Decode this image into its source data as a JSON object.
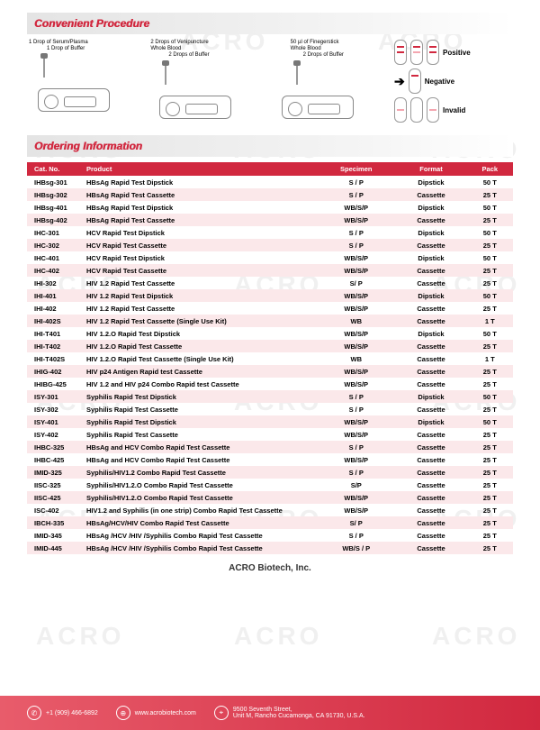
{
  "watermark_text": "ACRO",
  "watermark_color": "#f2f2f2",
  "sections": {
    "procedure_title": "Convenient Procedure",
    "ordering_title": "Ordering Information"
  },
  "procedure": {
    "col1": {
      "line1": "1 Drop of Serum/Plasma",
      "line2": "1 Drop of Buffer"
    },
    "col2": {
      "line1": "2 Drops of Venipuncture",
      "line2": "Whole Blood",
      "line3": "2 Drops of Buffer"
    },
    "col3": {
      "line1": "50 µl of Finegerstick",
      "line2": "Whole Blood",
      "line3": "2 Drops of Buffer"
    }
  },
  "results": {
    "positive": "Positive",
    "negative": "Negative",
    "invalid": "Invalid",
    "line_color_pos": "#d1283f",
    "line_color_faint": "#f4a6b0"
  },
  "table": {
    "columns": [
      "Cat. No.",
      "Product",
      "Specimen",
      "Format",
      "Pack"
    ],
    "col_widths": [
      "62px",
      "260px",
      "60px",
      "55px",
      "45px"
    ],
    "header_bg": "#d1283f",
    "stripe_bg": "#fbe8ea",
    "rows": [
      [
        "IHBsg-301",
        "HBsAg Rapid Test Dipstick",
        "S / P",
        "Dipstick",
        "50 T"
      ],
      [
        "IHBsg-302",
        "HBsAg Rapid Test Cassette",
        "S / P",
        "Cassette",
        "25 T"
      ],
      [
        "IHBsg-401",
        "HBsAg Rapid Test Dipstick",
        "WB/S/P",
        "Dipstick",
        "50 T"
      ],
      [
        "IHBsg-402",
        "HBsAg Rapid Test Cassette",
        "WB/S/P",
        "Cassette",
        "25 T"
      ],
      [
        "IHC-301",
        "HCV Rapid Test Dipstick",
        "S / P",
        "Dipstick",
        "50 T"
      ],
      [
        "IHC-302",
        "HCV Rapid Test Cassette",
        "S / P",
        "Cassette",
        "25 T"
      ],
      [
        "IHC-401",
        "HCV Rapid Test Dipstick",
        "WB/S/P",
        "Dipstick",
        "50 T"
      ],
      [
        "IHC-402",
        "HCV Rapid Test Cassette",
        "WB/S/P",
        "Cassette",
        "25 T"
      ],
      [
        "IHI-302",
        "HIV 1.2 Rapid Test Cassette",
        "S/ P",
        "Cassette",
        "25 T"
      ],
      [
        "IHI-401",
        "HIV 1.2 Rapid Test Dipstick",
        "WB/S/P",
        "Dipstick",
        "50 T"
      ],
      [
        "IHI-402",
        "HIV 1.2 Rapid Test Cassette",
        "WB/S/P",
        "Cassette",
        "25 T"
      ],
      [
        "IHI-402S",
        "HIV 1.2 Rapid Test Cassette (Single Use Kit)",
        "WB",
        "Cassette",
        "1 T"
      ],
      [
        "IHI-T401",
        "HIV 1.2.O Rapid Test Dipstick",
        "WB/S/P",
        "Dipstick",
        "50 T"
      ],
      [
        "IHI-T402",
        "HIV 1.2.O Rapid Test Cassette",
        "WB/S/P",
        "Cassette",
        "25 T"
      ],
      [
        "IHI-T402S",
        "HIV 1.2.O Rapid Test Cassette (Single Use Kit)",
        "WB",
        "Cassette",
        "1 T"
      ],
      [
        "IHIG-402",
        "HIV p24 Antigen Rapid test Cassette",
        "WB/S/P",
        "Cassette",
        "25 T"
      ],
      [
        "IHIBG-425",
        "HIV 1.2 and HIV p24 Combo Rapid test Cassette",
        "WB/S/P",
        "Cassette",
        "25 T"
      ],
      [
        "ISY-301",
        "Syphilis Rapid Test Dipstick",
        "S / P",
        "Dipstick",
        "50 T"
      ],
      [
        "ISY-302",
        "Syphilis Rapid Test Cassette",
        "S / P",
        "Cassette",
        "25 T"
      ],
      [
        "ISY-401",
        "Syphilis Rapid Test Dipstick",
        "WB/S/P",
        "Dipstick",
        "50 T"
      ],
      [
        "ISY-402",
        "Syphilis Rapid Test Cassette",
        "WB/S/P",
        "Cassette",
        "25 T"
      ],
      [
        "IHBC-325",
        "HBsAg and HCV Combo Rapid Test Cassette",
        "S / P",
        "Cassette",
        "25 T"
      ],
      [
        "IHBC-425",
        "HBsAg and HCV Combo Rapid Test Cassette",
        "WB/S/P",
        "Cassette",
        "25 T"
      ],
      [
        "IMID-325",
        "Syphilis/HIV1.2 Combo Rapid Test Cassette",
        "S / P",
        "Cassette",
        "25 T"
      ],
      [
        "IISC-325",
        "Syphilis/HIV1.2.O Combo Rapid Test Cassette",
        "S/P",
        "Cassette",
        "25 T"
      ],
      [
        "IISC-425",
        "Syphilis/HIV1.2.O Combo Rapid Test Cassette",
        "WB/S/P",
        "Cassette",
        "25 T"
      ],
      [
        "ISC-402",
        "HIV1.2 and Syphilis (in one strip) Combo Rapid Test Cassette",
        "WB/S/P",
        "Cassette",
        "25 T"
      ],
      [
        "IBCH-335",
        "HBsAg/HCV/HIV Combo Rapid Test Cassette",
        "S/ P",
        "Cassette",
        "25 T"
      ],
      [
        "IMID-345",
        "HBsAg /HCV /HIV /Syphilis Combo Rapid Test Cassette",
        "S / P",
        "Cassette",
        "25 T"
      ],
      [
        "IMID-445",
        "HBsAg /HCV /HIV /Syphilis Combo Rapid Test Cassette",
        "WB/S / P",
        "Cassette",
        "25 T"
      ]
    ]
  },
  "company": "ACRO Biotech, Inc.",
  "footer": {
    "bg_from": "#e85c6b",
    "bg_to": "#d1283f",
    "phone": "+1 (909) 466-6892",
    "web": "www.acrobiotech.com",
    "addr1": "9500 Seventh Street,",
    "addr2": "Unit M, Rancho Cucamonga, CA 91730, U.S.A."
  }
}
